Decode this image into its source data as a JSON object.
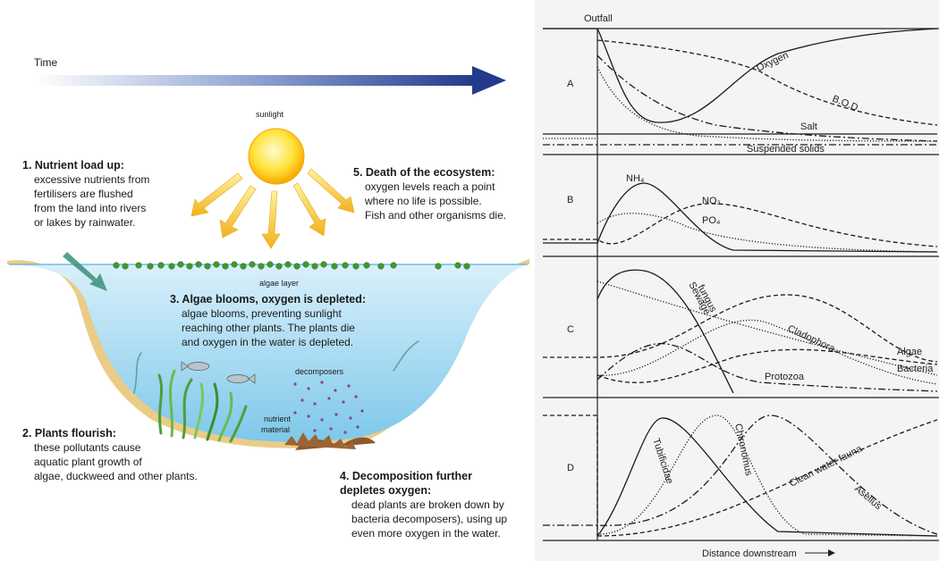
{
  "timeline": {
    "label": "Time"
  },
  "sun": {
    "label": "sunlight"
  },
  "steps": [
    {
      "title": [
        "1. Nutrient load up:"
      ],
      "body": [
        "excessive nutrients from",
        "fertilisers are flushed",
        "from the land into rivers",
        "or lakes by rainwater."
      ]
    },
    {
      "title": [
        "2. Plants flourish:"
      ],
      "body": [
        "these pollutants cause",
        "aquatic plant growth of",
        "algae, duckweed and other plants."
      ]
    },
    {
      "title": [
        "3. Algae blooms, oxygen is depleted:"
      ],
      "body": [
        "algae blooms, preventing sunlight",
        "reaching other plants. The plants die",
        "and oxygen in the water is depleted."
      ]
    },
    {
      "title": [
        "4. Decomposition further",
        "depletes oxygen:"
      ],
      "body": [
        "dead plants are broken down by",
        "bacteria decomposers), using up",
        "even more oxygen in the water."
      ]
    },
    {
      "title": [
        "5. Death of the ecosystem:"
      ],
      "body": [
        "oxygen levels reach a point",
        "where no life is possible.",
        "Fish and other organisms die."
      ]
    }
  ],
  "labels": {
    "algae_layer": "algae layer",
    "decomposers": "decomposers",
    "nutrient_material": [
      "nutrient",
      "material"
    ]
  },
  "graph": {
    "origin_label": "Outfall",
    "x_axis_label": "Distance downstream",
    "panels": [
      {
        "letter": "A",
        "curves": [
          "Oxygen",
          "B.O.D.",
          "Salt",
          "Suspended solids"
        ]
      },
      {
        "letter": "B",
        "curves": [
          "NH₄",
          "NO₃",
          "PO₄"
        ]
      },
      {
        "letter": "C",
        "curves": [
          [
            "Sewage",
            "fungus"
          ],
          "Cladophora",
          "Algae",
          "Bacteria",
          "Protozoa"
        ]
      },
      {
        "letter": "D",
        "curves": [
          "Tubificidae",
          "Chironomus",
          "Clean water fauna",
          "Asellus"
        ]
      }
    ]
  }
}
